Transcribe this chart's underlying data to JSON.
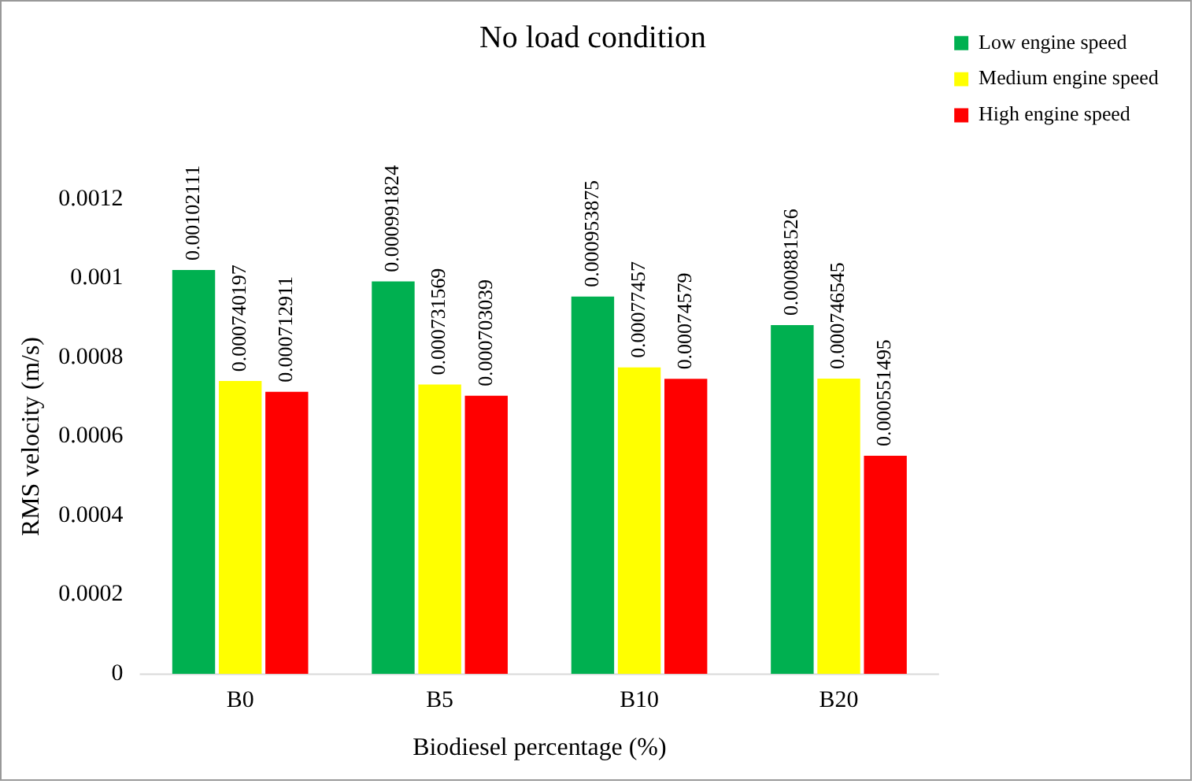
{
  "chart_data": {
    "type": "bar",
    "title": "No load condition",
    "xlabel": "Biodiesel percentage (%)",
    "ylabel": "RMS velocity (m/s)",
    "categories": [
      "B0",
      "B5",
      "B10",
      "B20"
    ],
    "series": [
      {
        "name": "Low engine speed",
        "color": "#00b050",
        "values": [
          0.00102111,
          0.000991824,
          0.000953875,
          0.000881526
        ]
      },
      {
        "name": "Medium engine speed",
        "color": "#ffff00",
        "values": [
          0.000740197,
          0.000731569,
          0.00077457,
          0.000746545
        ]
      },
      {
        "name": "High engine speed",
        "color": "#ff0000",
        "values": [
          0.000712911,
          0.000703039,
          0.00074579,
          0.000551495
        ]
      }
    ],
    "ylim": [
      0,
      0.0012
    ],
    "yticks": [
      0,
      0.0002,
      0.0004,
      0.0006,
      0.0008,
      0.001,
      0.0012
    ],
    "data_labels": true,
    "grid": false,
    "legend": "top right"
  }
}
